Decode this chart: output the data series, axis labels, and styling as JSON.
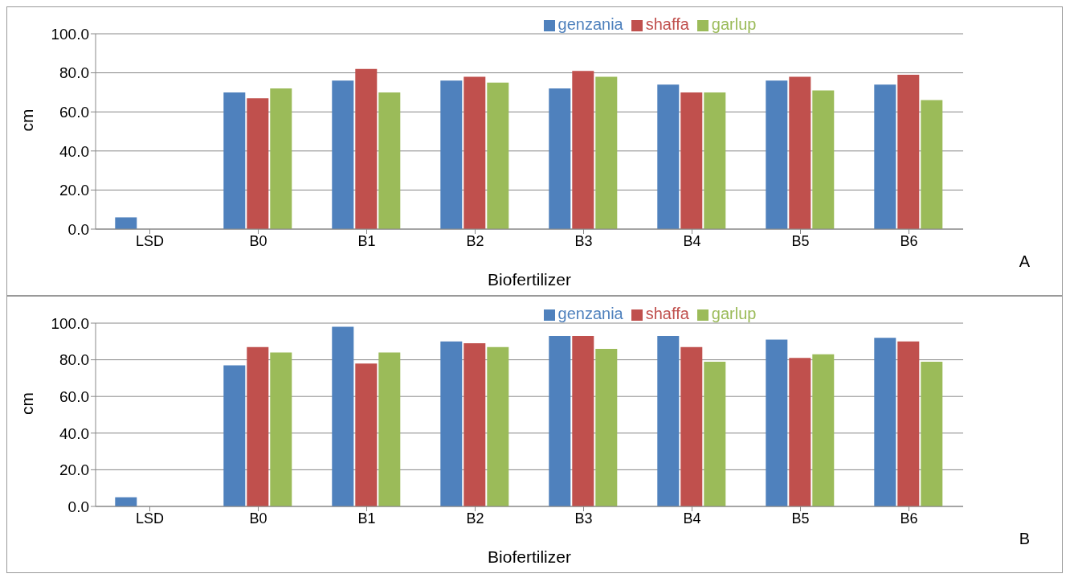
{
  "chart_data": [
    {
      "type": "bar",
      "categories": [
        "LSD",
        "B0",
        "B1",
        "B2",
        "B3",
        "B4",
        "B5",
        "B6"
      ],
      "xlabel": "Biofertilizer",
      "ylabel": "cm",
      "annotations": [
        "A"
      ],
      "series": [
        {
          "name": "genzania",
          "color": "#4f81bd",
          "values": [
            6,
            70,
            76,
            76,
            72,
            74,
            76,
            74
          ]
        },
        {
          "name": "shaffa",
          "color": "#c0504d",
          "values": [
            null,
            67,
            82,
            78,
            81,
            70,
            78,
            79
          ]
        },
        {
          "name": "garlup",
          "color": "#9bbb59",
          "values": [
            null,
            72,
            70,
            75,
            78,
            70,
            71,
            66
          ]
        }
      ],
      "ylim": [
        0,
        100
      ],
      "yticks": [
        {
          "value": 0,
          "label": "0.0"
        },
        {
          "value": 20,
          "label": "20.0"
        },
        {
          "value": 40,
          "label": "40.0"
        },
        {
          "value": 60,
          "label": "60.0"
        },
        {
          "value": 80,
          "label": "80.0"
        },
        {
          "value": 100,
          "label": "100.0"
        }
      ],
      "grid": "y",
      "legend": "top"
    },
    {
      "type": "bar",
      "categories": [
        "LSD",
        "B0",
        "B1",
        "B2",
        "B3",
        "B4",
        "B5",
        "B6"
      ],
      "xlabel": "Biofertilizer",
      "ylabel": "cm",
      "annotations": [
        "B"
      ],
      "series": [
        {
          "name": "genzania",
          "color": "#4f81bd",
          "values": [
            5,
            77,
            98,
            90,
            93,
            93,
            91,
            92
          ]
        },
        {
          "name": "shaffa",
          "color": "#c0504d",
          "values": [
            null,
            87,
            78,
            89,
            93,
            87,
            81,
            90
          ]
        },
        {
          "name": "garlup",
          "color": "#9bbb59",
          "values": [
            null,
            84,
            84,
            87,
            86,
            79,
            83,
            79
          ]
        }
      ],
      "ylim": [
        0,
        100
      ],
      "yticks": [
        {
          "value": 0,
          "label": "0.0"
        },
        {
          "value": 20,
          "label": "20.0"
        },
        {
          "value": 40,
          "label": "40.0"
        },
        {
          "value": 60,
          "label": "60.0"
        },
        {
          "value": 80,
          "label": "80.0"
        },
        {
          "value": 100,
          "label": "100.0"
        }
      ],
      "grid": "y",
      "legend": "top"
    }
  ]
}
